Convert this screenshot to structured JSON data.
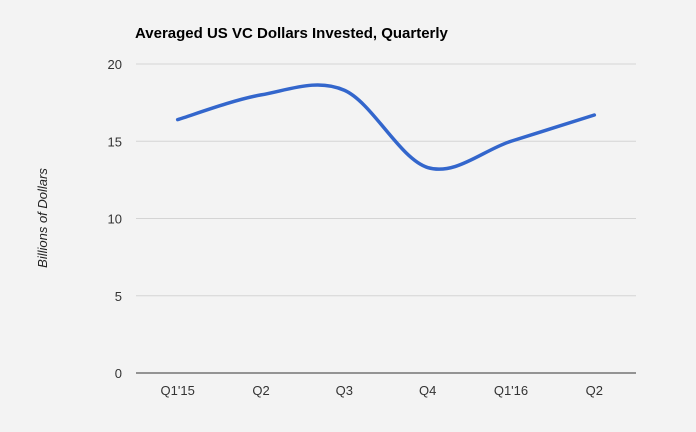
{
  "chart_data": {
    "type": "line",
    "title": "Averaged US VC Dollars Invested, Quarterly",
    "ylabel": "Billions of Dollars",
    "xlabel": "",
    "categories": [
      "Q1'15",
      "Q2",
      "Q3",
      "Q4",
      "Q1'16",
      "Q2"
    ],
    "series": [
      {
        "values": [
          16.4,
          18.0,
          18.3,
          13.3,
          15.0,
          16.7
        ],
        "color": "#3366cc"
      }
    ],
    "ylim": [
      0,
      20
    ],
    "yticks": [
      0,
      5,
      10,
      15,
      20
    ],
    "grid": true,
    "legend": "none",
    "smooth": true
  }
}
